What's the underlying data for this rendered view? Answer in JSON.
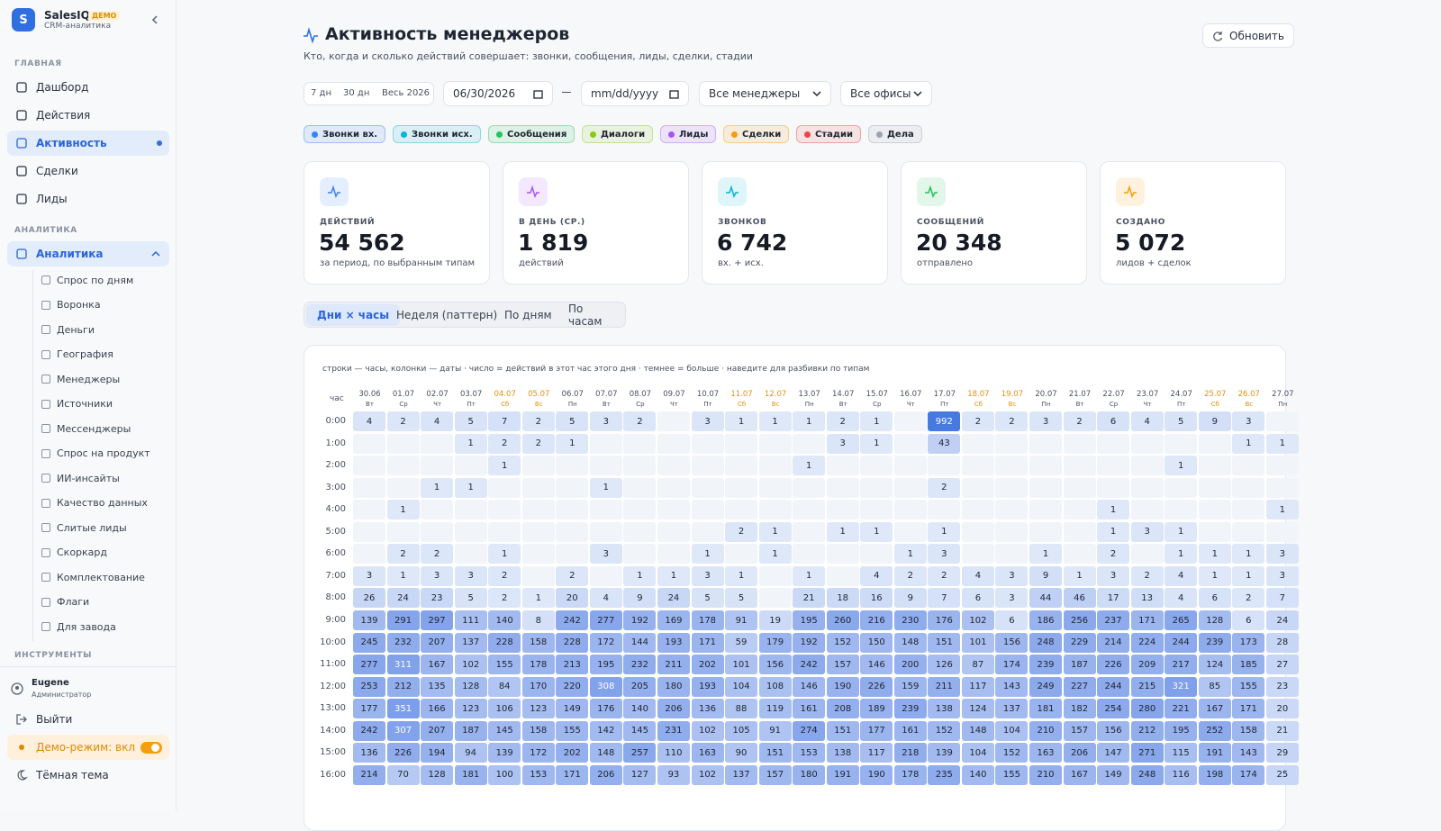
{
  "sidebar": {
    "logo": "S",
    "brand": "SalesIQ",
    "badge": "ДЕМО",
    "subtitle": "CRM-аналитика",
    "sections": [
      {
        "title": "ГЛАВНАЯ",
        "items": [
          {
            "label": "Дашборд"
          },
          {
            "label": "Действия"
          },
          {
            "label": "Активность",
            "active": true
          },
          {
            "label": "Сделки"
          },
          {
            "label": "Лиды"
          }
        ]
      },
      {
        "title": "АНАЛИТИКА",
        "items": [
          {
            "label": "Аналитика",
            "active": true,
            "children": [
              "Спрос по дням",
              "Воронка",
              "Деньги",
              "География",
              "Менеджеры",
              "Источники",
              "Мессенджеры",
              "Спрос на продукт",
              "ИИ-инсайты",
              "Качество данных",
              "Слитые лиды",
              "Скоркард",
              "Комплектование",
              "Флаги",
              "Для завода"
            ]
          }
        ]
      },
      {
        "title": "ИНСТРУМЕНТЫ",
        "items": []
      }
    ],
    "user": {
      "name": "Eugene",
      "role": "Администратор"
    },
    "footer": [
      "Выйти",
      "Демо-режим: вкл",
      "Тёмная тема"
    ]
  },
  "header": {
    "title": "Активность менеджеров",
    "subtitle": "Кто, когда и сколько действий совершает: звонки, сообщения, лиды, сделки, стадии",
    "refresh": "Обновить"
  },
  "filters": {
    "ranges": [
      "7 дн",
      "30 дн",
      "Весь 2026"
    ],
    "date_from": "06/30/2026",
    "date_to": "mm/dd/yyyy",
    "managers": "Все менеджеры",
    "offices": "Все офисы"
  },
  "chips": [
    {
      "label": "Звонки вх.",
      "color": "#3b82f6"
    },
    {
      "label": "Звонки исх.",
      "color": "#06b6d4"
    },
    {
      "label": "Сообщения",
      "color": "#22c55e"
    },
    {
      "label": "Диалоги",
      "color": "#84cc16"
    },
    {
      "label": "Лиды",
      "color": "#a855f7"
    },
    {
      "label": "Сделки",
      "color": "#f59e0b"
    },
    {
      "label": "Стадии",
      "color": "#ef4444"
    },
    {
      "label": "Дела",
      "color": "#9ca3af"
    }
  ],
  "kpis": [
    {
      "label": "ДЕЙСТВИЙ",
      "value": "54 562",
      "note": "за период, по выбранным типам",
      "color": "#3b82f6"
    },
    {
      "label": "В ДЕНЬ (СР.)",
      "value": "1 819",
      "note": "действий",
      "color": "#a855f7"
    },
    {
      "label": "ЗВОНКОВ",
      "value": "6 742",
      "note": "вх. + исх.",
      "color": "#06b6d4"
    },
    {
      "label": "СООБЩЕНИЙ",
      "value": "20 348",
      "note": "отправлено",
      "color": "#22c55e"
    },
    {
      "label": "СОЗДАНО",
      "value": "5 072",
      "note": "лидов + сделок",
      "color": "#f59e0b"
    }
  ],
  "tabs": {
    "items": [
      "Дни × часы",
      "Неделя (паттерн)",
      "По дням",
      "По часам"
    ],
    "active": 0
  },
  "heatmap": {
    "caption": "строки — часы, колонки — даты · число = действий в этот час этого дня · темнее = больше · наведите для разбивки по типам",
    "corner": "час",
    "columns": [
      {
        "date": "30.06",
        "day": "Вт"
      },
      {
        "date": "01.07",
        "day": "Ср"
      },
      {
        "date": "02.07",
        "day": "Чт"
      },
      {
        "date": "03.07",
        "day": "Пт"
      },
      {
        "date": "04.07",
        "day": "Сб",
        "weekend": true
      },
      {
        "date": "05.07",
        "day": "Вс",
        "weekend": true
      },
      {
        "date": "06.07",
        "day": "Пн"
      },
      {
        "date": "07.07",
        "day": "Вт"
      },
      {
        "date": "08.07",
        "day": "Ср"
      },
      {
        "date": "09.07",
        "day": "Чт"
      },
      {
        "date": "10.07",
        "day": "Пт"
      },
      {
        "date": "11.07",
        "day": "Сб",
        "weekend": true
      },
      {
        "date": "12.07",
        "day": "Вс",
        "weekend": true
      },
      {
        "date": "13.07",
        "day": "Пн"
      },
      {
        "date": "14.07",
        "day": "Вт"
      },
      {
        "date": "15.07",
        "day": "Ср"
      },
      {
        "date": "16.07",
        "day": "Чт"
      },
      {
        "date": "17.07",
        "day": "Пт"
      },
      {
        "date": "18.07",
        "day": "Сб",
        "weekend": true
      },
      {
        "date": "19.07",
        "day": "Вс",
        "weekend": true
      },
      {
        "date": "20.07",
        "day": "Пн"
      },
      {
        "date": "21.07",
        "day": "Вт"
      },
      {
        "date": "22.07",
        "day": "Ср"
      },
      {
        "date": "23.07",
        "day": "Чт"
      },
      {
        "date": "24.07",
        "day": "Пт"
      },
      {
        "date": "25.07",
        "day": "Сб",
        "weekend": true
      },
      {
        "date": "26.07",
        "day": "Вс",
        "weekend": true
      },
      {
        "date": "27.07",
        "day": "Пн"
      }
    ],
    "rows": [
      {
        "hour": "0:00",
        "values": [
          4,
          2,
          4,
          5,
          7,
          2,
          5,
          3,
          2,
          null,
          3,
          1,
          1,
          1,
          2,
          1,
          null,
          992,
          2,
          2,
          3,
          2,
          6,
          4,
          5,
          9,
          3,
          null
        ]
      },
      {
        "hour": "1:00",
        "values": [
          null,
          null,
          null,
          1,
          2,
          2,
          1,
          null,
          null,
          null,
          null,
          null,
          null,
          null,
          3,
          1,
          null,
          43,
          null,
          null,
          null,
          null,
          null,
          null,
          null,
          null,
          1,
          1
        ]
      },
      {
        "hour": "2:00",
        "values": [
          null,
          null,
          null,
          null,
          1,
          null,
          null,
          null,
          null,
          null,
          null,
          null,
          null,
          1,
          null,
          null,
          null,
          null,
          null,
          null,
          null,
          null,
          null,
          null,
          1,
          null,
          null,
          null
        ]
      },
      {
        "hour": "3:00",
        "values": [
          null,
          null,
          1,
          1,
          null,
          null,
          null,
          1,
          null,
          null,
          null,
          null,
          null,
          null,
          null,
          null,
          null,
          2,
          null,
          null,
          null,
          null,
          null,
          null,
          null,
          null,
          null,
          null
        ]
      },
      {
        "hour": "4:00",
        "values": [
          null,
          1,
          null,
          null,
          null,
          null,
          null,
          null,
          null,
          null,
          null,
          null,
          null,
          null,
          null,
          null,
          null,
          null,
          null,
          null,
          null,
          null,
          1,
          null,
          null,
          null,
          null,
          1
        ]
      },
      {
        "hour": "5:00",
        "values": [
          null,
          null,
          null,
          null,
          null,
          null,
          null,
          null,
          null,
          null,
          null,
          2,
          1,
          null,
          1,
          1,
          null,
          1,
          null,
          null,
          null,
          null,
          1,
          3,
          1,
          null,
          null,
          null
        ]
      },
      {
        "hour": "6:00",
        "values": [
          null,
          2,
          2,
          null,
          1,
          null,
          null,
          3,
          null,
          null,
          1,
          null,
          1,
          null,
          null,
          null,
          1,
          3,
          null,
          null,
          1,
          null,
          2,
          null,
          1,
          1,
          1,
          3
        ]
      },
      {
        "hour": "7:00",
        "values": [
          3,
          1,
          3,
          3,
          2,
          null,
          2,
          null,
          1,
          1,
          3,
          1,
          null,
          1,
          null,
          4,
          2,
          2,
          4,
          3,
          9,
          1,
          3,
          2,
          4,
          1,
          1,
          3
        ]
      },
      {
        "hour": "8:00",
        "values": [
          26,
          24,
          23,
          5,
          2,
          1,
          20,
          4,
          9,
          24,
          5,
          5,
          null,
          21,
          18,
          16,
          9,
          7,
          6,
          3,
          44,
          46,
          17,
          13,
          4,
          6,
          2,
          7
        ]
      },
      {
        "hour": "9:00",
        "values": [
          139,
          291,
          297,
          111,
          140,
          8,
          242,
          277,
          192,
          169,
          178,
          91,
          19,
          195,
          260,
          216,
          230,
          176,
          102,
          6,
          186,
          256,
          237,
          171,
          265,
          128,
          6,
          24
        ]
      },
      {
        "hour": "10:00",
        "values": [
          245,
          232,
          207,
          137,
          228,
          158,
          228,
          172,
          144,
          193,
          171,
          59,
          179,
          192,
          152,
          150,
          148,
          151,
          101,
          156,
          248,
          229,
          214,
          224,
          244,
          239,
          173,
          28
        ]
      },
      {
        "hour": "11:00",
        "values": [
          277,
          311,
          167,
          102,
          155,
          178,
          213,
          195,
          232,
          211,
          202,
          101,
          156,
          242,
          157,
          146,
          200,
          126,
          87,
          174,
          239,
          187,
          226,
          209,
          217,
          124,
          185,
          27
        ]
      },
      {
        "hour": "12:00",
        "values": [
          253,
          212,
          135,
          128,
          84,
          170,
          220,
          308,
          205,
          180,
          193,
          104,
          108,
          146,
          190,
          226,
          159,
          211,
          117,
          143,
          249,
          227,
          244,
          215,
          321,
          85,
          155,
          23
        ]
      },
      {
        "hour": "13:00",
        "values": [
          177,
          351,
          166,
          123,
          106,
          123,
          149,
          176,
          140,
          206,
          136,
          88,
          119,
          161,
          208,
          189,
          239,
          138,
          124,
          137,
          181,
          182,
          254,
          280,
          221,
          167,
          171,
          20
        ]
      },
      {
        "hour": "14:00",
        "values": [
          242,
          307,
          207,
          187,
          145,
          158,
          155,
          142,
          145,
          231,
          102,
          105,
          91,
          274,
          151,
          177,
          161,
          152,
          148,
          104,
          210,
          157,
          156,
          212,
          195,
          252,
          158,
          21
        ]
      },
      {
        "hour": "15:00",
        "values": [
          136,
          226,
          194,
          94,
          139,
          172,
          202,
          148,
          257,
          110,
          163,
          90,
          151,
          153,
          138,
          117,
          218,
          139,
          104,
          152,
          163,
          206,
          147,
          271,
          115,
          191,
          143,
          29
        ]
      },
      {
        "hour": "16:00",
        "values": [
          214,
          70,
          128,
          181,
          100,
          153,
          171,
          206,
          127,
          93,
          102,
          137,
          157,
          180,
          191,
          190,
          178,
          235,
          140,
          155,
          210,
          167,
          149,
          248,
          116,
          198,
          174,
          25
        ]
      }
    ]
  }
}
